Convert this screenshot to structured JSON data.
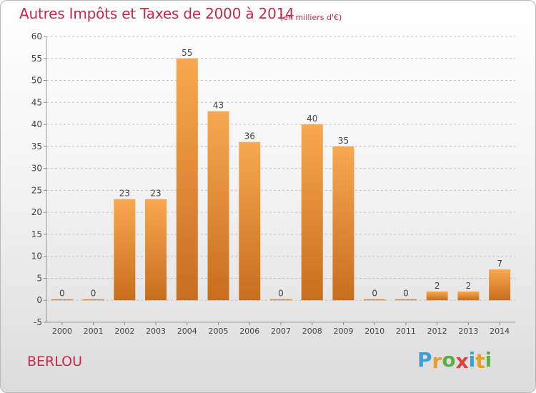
{
  "title": "Autres Impôts et Taxes de 2000 à 2014",
  "unit_note": "(en milliers d'€)",
  "commune": "BERLOU",
  "logo": {
    "letters": [
      "P",
      "r",
      "o",
      "x",
      "i",
      "t",
      "i"
    ],
    "colors": [
      "#3aa0d8",
      "#e8a020",
      "#5bb04a",
      "#e0403a",
      "#3aa0d8",
      "#e8a020",
      "#5bb04a"
    ]
  },
  "colors": {
    "bar_light": "#f8a850",
    "bar_dark": "#c86e1e",
    "accent": "#c8284a"
  },
  "chart_data": {
    "type": "bar",
    "categories": [
      "2000",
      "2001",
      "2002",
      "2003",
      "2004",
      "2005",
      "2006",
      "2007",
      "2008",
      "2009",
      "2010",
      "2011",
      "2012",
      "2013",
      "2014"
    ],
    "values": [
      0,
      0,
      23,
      23,
      55,
      43,
      36,
      0,
      40,
      35,
      0,
      0,
      2,
      2,
      7
    ],
    "data_labels": [
      "0",
      "0",
      "23",
      "23",
      "55",
      "43",
      "36",
      "0",
      "40",
      "35",
      "0",
      "0",
      "2",
      "2",
      "7"
    ],
    "yticks": [
      "-5",
      "0",
      "5",
      "10",
      "15",
      "20",
      "25",
      "30",
      "35",
      "40",
      "45",
      "50",
      "55",
      "60"
    ],
    "ylim": [
      -5,
      60
    ],
    "grid": "horizontal-dashed",
    "legend": "none"
  }
}
